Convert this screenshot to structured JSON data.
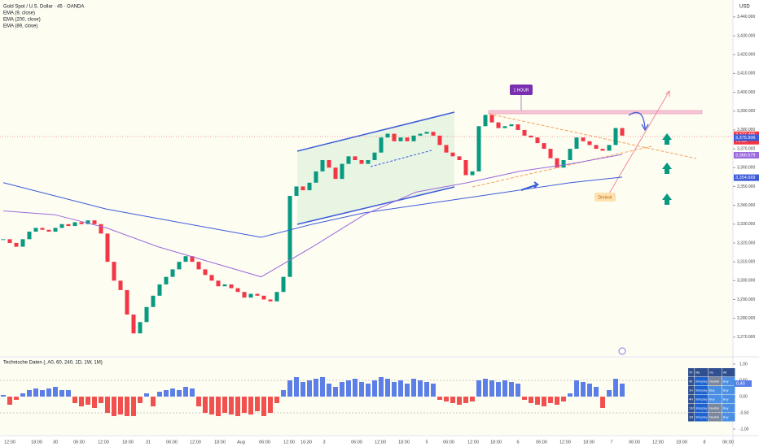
{
  "header": {
    "title": "Gold Spot / U.S. Dollar · 45 · OANDA",
    "indicators": [
      {
        "name": "EMA (9, close)"
      },
      {
        "name": "EMA (200, close)",
        "color": "#3d5bd9",
        "values": [
          3352,
          3345,
          3338,
          3333,
          3328,
          3323,
          3330,
          3336,
          3340,
          3344,
          3348,
          3352,
          3355
        ]
      },
      {
        "name": "EMA (89, close)",
        "color": "#9c6ade",
        "values": [
          3337,
          3335,
          3328,
          3318,
          3310,
          3302,
          3318,
          3335,
          3347,
          3352,
          3358,
          3362,
          3367
        ]
      }
    ]
  },
  "price_axis": {
    "unit": "USD",
    "ylim": [
      3260,
      3449
    ],
    "yticks": [
      {
        "value": 3270,
        "label": "3,270.000"
      },
      {
        "value": 3280,
        "label": "3,280.000"
      },
      {
        "value": 3290,
        "label": "3,290.000"
      },
      {
        "value": 3300,
        "label": "3,300.000"
      },
      {
        "value": 3310,
        "label": "3,310.000"
      },
      {
        "value": 3320,
        "label": "3,320.000"
      },
      {
        "value": 3330,
        "label": "3,330.000"
      },
      {
        "value": 3340,
        "label": "3,340.000"
      },
      {
        "value": 3350,
        "label": "3,350.000"
      },
      {
        "value": 3360,
        "label": "3,360.000"
      },
      {
        "value": 3370,
        "label": "3,370.000"
      },
      {
        "value": 3380,
        "label": "3,380.000"
      },
      {
        "value": 3390,
        "label": "3,390.000"
      },
      {
        "value": 3400,
        "label": "3,400.000"
      },
      {
        "value": 3410,
        "label": "3,410.000"
      },
      {
        "value": 3420,
        "label": "3,420.000"
      },
      {
        "value": 3430,
        "label": "3,430.000"
      },
      {
        "value": 3440,
        "label": "3,440.000"
      }
    ],
    "price_tags": [
      {
        "value": 3377.465,
        "label": "3,377.465",
        "color": "#f23645",
        "countdown": "71:09"
      },
      {
        "value": 3375.906,
        "label": "3,375.906",
        "color": "#3d5bd9"
      },
      {
        "value": 3366.579,
        "label": "3,366.579",
        "color": "#9c6ade"
      },
      {
        "value": 3354.669,
        "label": "3,354.669",
        "color": "#3d5bd9"
      }
    ]
  },
  "candles": {
    "up_color": "#089981",
    "down_color": "#f23645",
    "close": [
      3322,
      3320,
      3318,
      3322,
      3326,
      3328,
      3327,
      3326,
      3328,
      3330,
      3329,
      3331,
      3330,
      3332,
      3330,
      3325,
      3310,
      3300,
      3295,
      3282,
      3272,
      3278,
      3286,
      3292,
      3298,
      3302,
      3306,
      3310,
      3313,
      3310,
      3306,
      3303,
      3300,
      3297,
      3298,
      3296,
      3294,
      3291,
      3293,
      3292,
      3290,
      3289,
      3294,
      3302,
      3345,
      3350,
      3348,
      3352,
      3358,
      3364,
      3360,
      3354,
      3362,
      3366,
      3364,
      3362,
      3364,
      3368,
      3376,
      3378,
      3374,
      3376,
      3374,
      3377,
      3378,
      3379,
      3377,
      3372,
      3368,
      3366,
      3364,
      3356,
      3358,
      3382,
      3388,
      3384,
      3381,
      3382,
      3383,
      3380,
      3377,
      3376,
      3373,
      3370,
      3365,
      3360,
      3364,
      3370,
      3376,
      3374,
      3372,
      3370,
      3369,
      3372,
      3381,
      3377
    ]
  },
  "annotations": {
    "timeframe": "1 HOUR",
    "pattern": "Dreieck"
  },
  "oscillator": {
    "title": "Technische Daten (, A0, 60, 240, 1D, 1W, 1M)",
    "ylim": [
      -1.175,
      1.2
    ],
    "yticks": [
      {
        "value": 1,
        "label": "1,00"
      },
      {
        "value": 0.5,
        "label": "0,50"
      },
      {
        "value": 0,
        "label": "0,00"
      },
      {
        "value": -0.5,
        "label": "-0,50"
      },
      {
        "value": -1,
        "label": "-1,00"
      }
    ],
    "current": {
      "value": 0.4,
      "label": "0,40"
    },
    "pos_color": "#5b7fe6",
    "neg_color": "#f0514f",
    "values": [
      0.05,
      -0.25,
      -0.1,
      0.1,
      0.2,
      0.25,
      0.2,
      0.25,
      0.3,
      0.2,
      0.2,
      -0.2,
      -0.3,
      -0.25,
      -0.35,
      -0.2,
      -0.5,
      -0.6,
      -0.55,
      -0.6,
      -0.6,
      -0.2,
      0.1,
      -0.3,
      0.15,
      0.2,
      0.25,
      0.2,
      0.3,
      0.25,
      -0.3,
      -0.5,
      -0.55,
      -0.6,
      -0.5,
      -0.55,
      -0.6,
      -0.5,
      -0.55,
      -0.45,
      -0.6,
      -0.5,
      -0.2,
      0.2,
      0.5,
      0.6,
      0.45,
      0.5,
      0.55,
      0.6,
      0.4,
      0.3,
      0.45,
      0.5,
      0.55,
      0.45,
      0.4,
      0.5,
      0.6,
      0.55,
      0.45,
      0.5,
      0.4,
      0.55,
      0.5,
      0.45,
      0.4,
      -0.1,
      -0.15,
      -0.2,
      -0.25,
      -0.2,
      -0.15,
      0.5,
      0.55,
      0.5,
      0.45,
      0.5,
      0.45,
      0.4,
      -0.1,
      -0.2,
      -0.25,
      -0.3,
      -0.2,
      -0.25,
      -0.15,
      0.1,
      0.5,
      0.45,
      0.4,
      0.3,
      -0.35,
      0.2,
      0.55,
      0.4
    ]
  },
  "table": {
    "header": [
      "TF",
      "Ma",
      "Os",
      "All"
    ],
    "rows": [
      [
        "45",
        "Strong Buy",
        "Neutral",
        "Buy"
      ],
      [
        "1H",
        "Strong Buy",
        "Buy",
        "Buy"
      ],
      [
        "4H",
        "Strong Buy",
        "Buy",
        "Buy"
      ],
      [
        "1W",
        "Strong Buy",
        "Neutral",
        "Buy"
      ],
      [
        "1M",
        "Strong Buy",
        "Neutral",
        "Buy"
      ]
    ]
  },
  "time_axis": [
    "12:00",
    "18:00",
    "30",
    "06:00",
    "12:00",
    "18:00",
    "31",
    "06:00",
    "12:00",
    "18:00",
    "Aug",
    "06:00",
    "12:00",
    "16:30",
    "3",
    "06:00",
    "12:00",
    "18:00",
    "5",
    "06:00",
    "12:00",
    "18:00",
    "6",
    "06:00",
    "12:00",
    "18:00",
    "7",
    "06:00",
    "12:00",
    "18:00",
    "8",
    "06:00"
  ]
}
